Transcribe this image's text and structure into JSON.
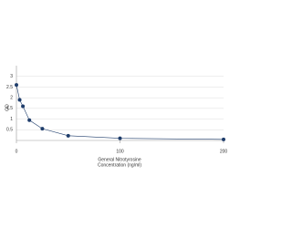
{
  "chart_data": {
    "type": "line",
    "ylabel": "OD",
    "xlabel": [
      "General Nitrotyrosine",
      "Concentration (ng/ml)"
    ],
    "x": [
      0,
      3.125,
      6.25,
      12.5,
      25,
      50,
      100,
      200
    ],
    "series": [
      {
        "color": "#1f3d6b",
        "values": [
          2.6,
          1.9,
          1.6,
          0.95,
          0.55,
          0.22,
          0.1,
          0.05
        ]
      }
    ],
    "xlim": [
      0,
      200
    ],
    "xticks": [
      0,
      100,
      200
    ],
    "ylim": [
      0,
      3.5
    ],
    "yticks": [
      0.5,
      1,
      1.5,
      2,
      2.5,
      3
    ],
    "grid": true
  }
}
